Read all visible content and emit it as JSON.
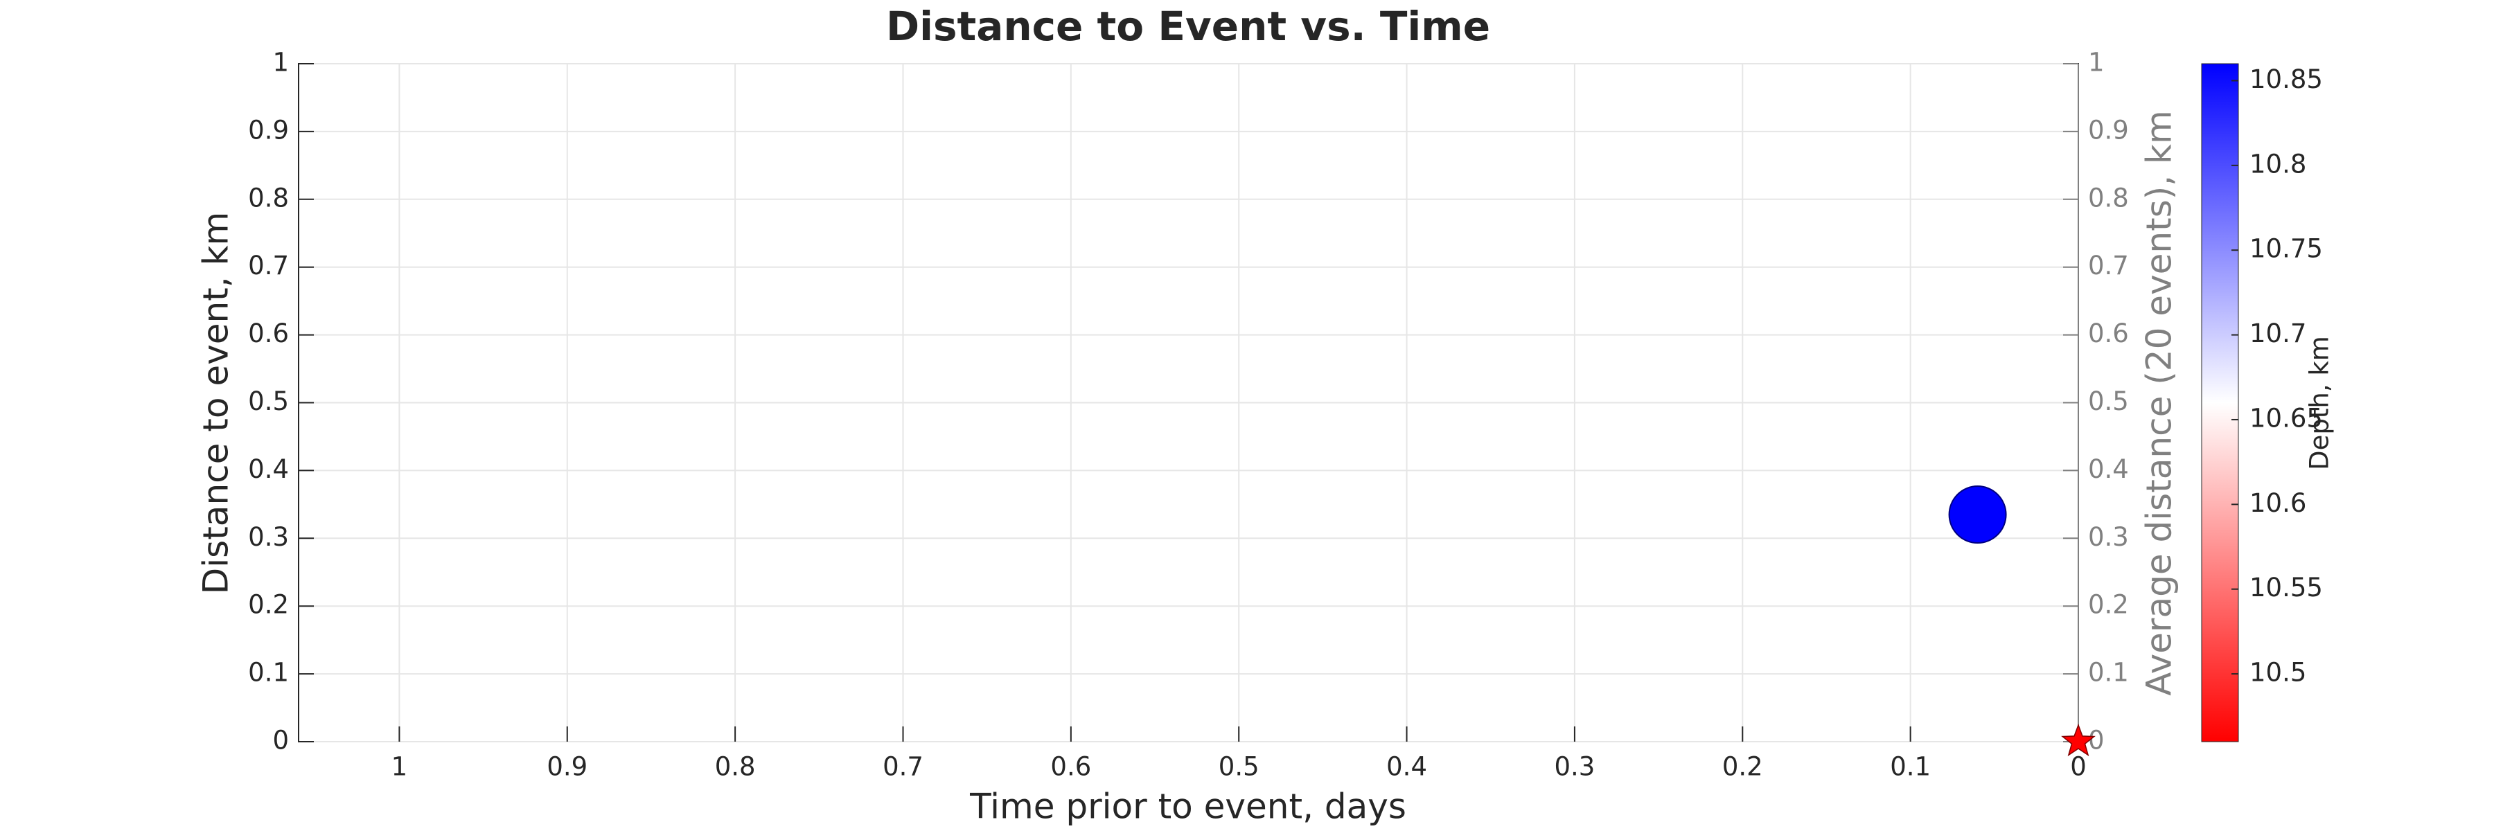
{
  "chart_data": {
    "type": "scatter",
    "title": "Distance to Event vs. Time",
    "x_label": "Time prior to event, days",
    "y_label": "Distance to event, km",
    "y2_label": "Average distance (20 events), km",
    "colorbar_label": "Depth, km",
    "xlim": [
      1.06,
      0
    ],
    "xticks": [
      1,
      0.9,
      0.8,
      0.7,
      0.6,
      0.5,
      0.4,
      0.3,
      0.2,
      0.1,
      0
    ],
    "ylim": [
      0,
      1
    ],
    "yticks": [
      0,
      0.1,
      0.2,
      0.3,
      0.4,
      0.5,
      0.6,
      0.7,
      0.8,
      0.9,
      1
    ],
    "y2lim": [
      0,
      1
    ],
    "y2ticks": [
      0,
      0.1,
      0.2,
      0.3,
      0.4,
      0.5,
      0.6,
      0.7,
      0.8,
      0.9,
      1
    ],
    "grid": true,
    "series": [
      {
        "x": [
          0.06
        ],
        "values": [
          0.335
        ],
        "depth": [
          10.86
        ]
      }
    ],
    "event": {
      "x": 0,
      "y": 0,
      "color": "#ff0000"
    },
    "clim": [
      10.46,
      10.86
    ],
    "cticks": [
      10.5,
      10.55,
      10.6,
      10.65,
      10.7,
      10.75,
      10.8,
      10.85
    ],
    "colormap": [
      "#ff0000",
      "#ffffff",
      "#0000ff"
    ]
  }
}
